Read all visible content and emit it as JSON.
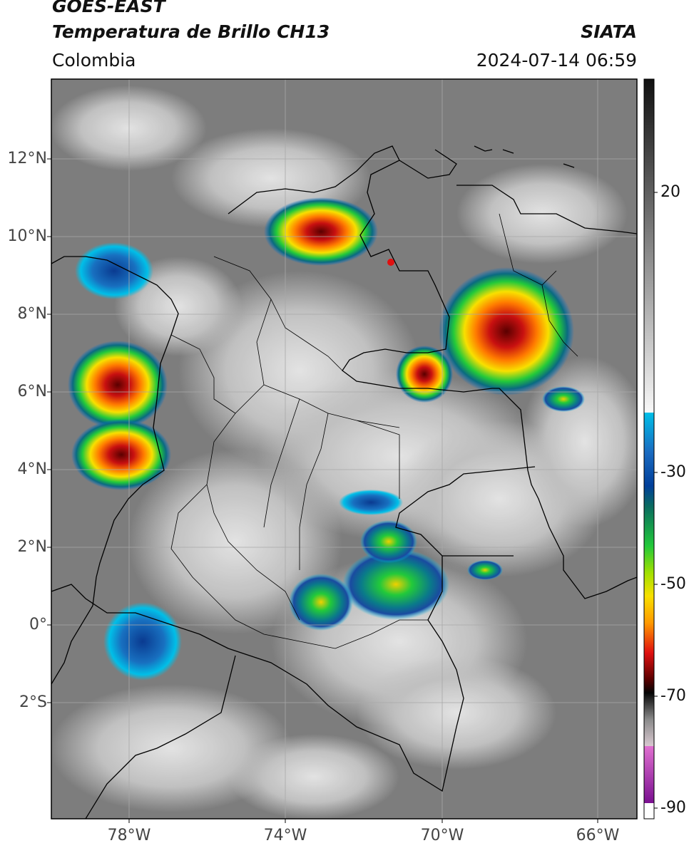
{
  "header": {
    "satellite": "GOES-EAST",
    "product": "Temperatura de Brillo CH13",
    "region": "Colombia",
    "organization": "SIATA",
    "datetime": "2024-07-14 06:59"
  },
  "axes": {
    "lat_labels": [
      "12°N",
      "10°N",
      "8°N",
      "6°N",
      "4°N",
      "2°N",
      "0°",
      "2°S"
    ],
    "lon_labels": [
      "78°W",
      "74°W",
      "70°W",
      "66°W"
    ]
  },
  "colorbar": {
    "ticks": [
      "20",
      "-30",
      "-50",
      "-70",
      "-90"
    ],
    "colors": {
      "warm_top": "#111111",
      "warm_bottom": "#f8f8f8",
      "cyan": "#00bfe8",
      "blue": "#003f9a",
      "green": "#22c93a",
      "yellow": "#f8e000",
      "orange": "#ff9a00",
      "red": "#e01010",
      "dark_red": "#5a0000",
      "black": "#050505",
      "grey_band": "#8a8a8a",
      "pink": "#e070d0",
      "purple": "#7a1090"
    }
  },
  "map_colors": {
    "background": "#7d7d7d",
    "cloud": "#e6e6e6",
    "border": "#000000",
    "grid": "#a8a8a8"
  }
}
